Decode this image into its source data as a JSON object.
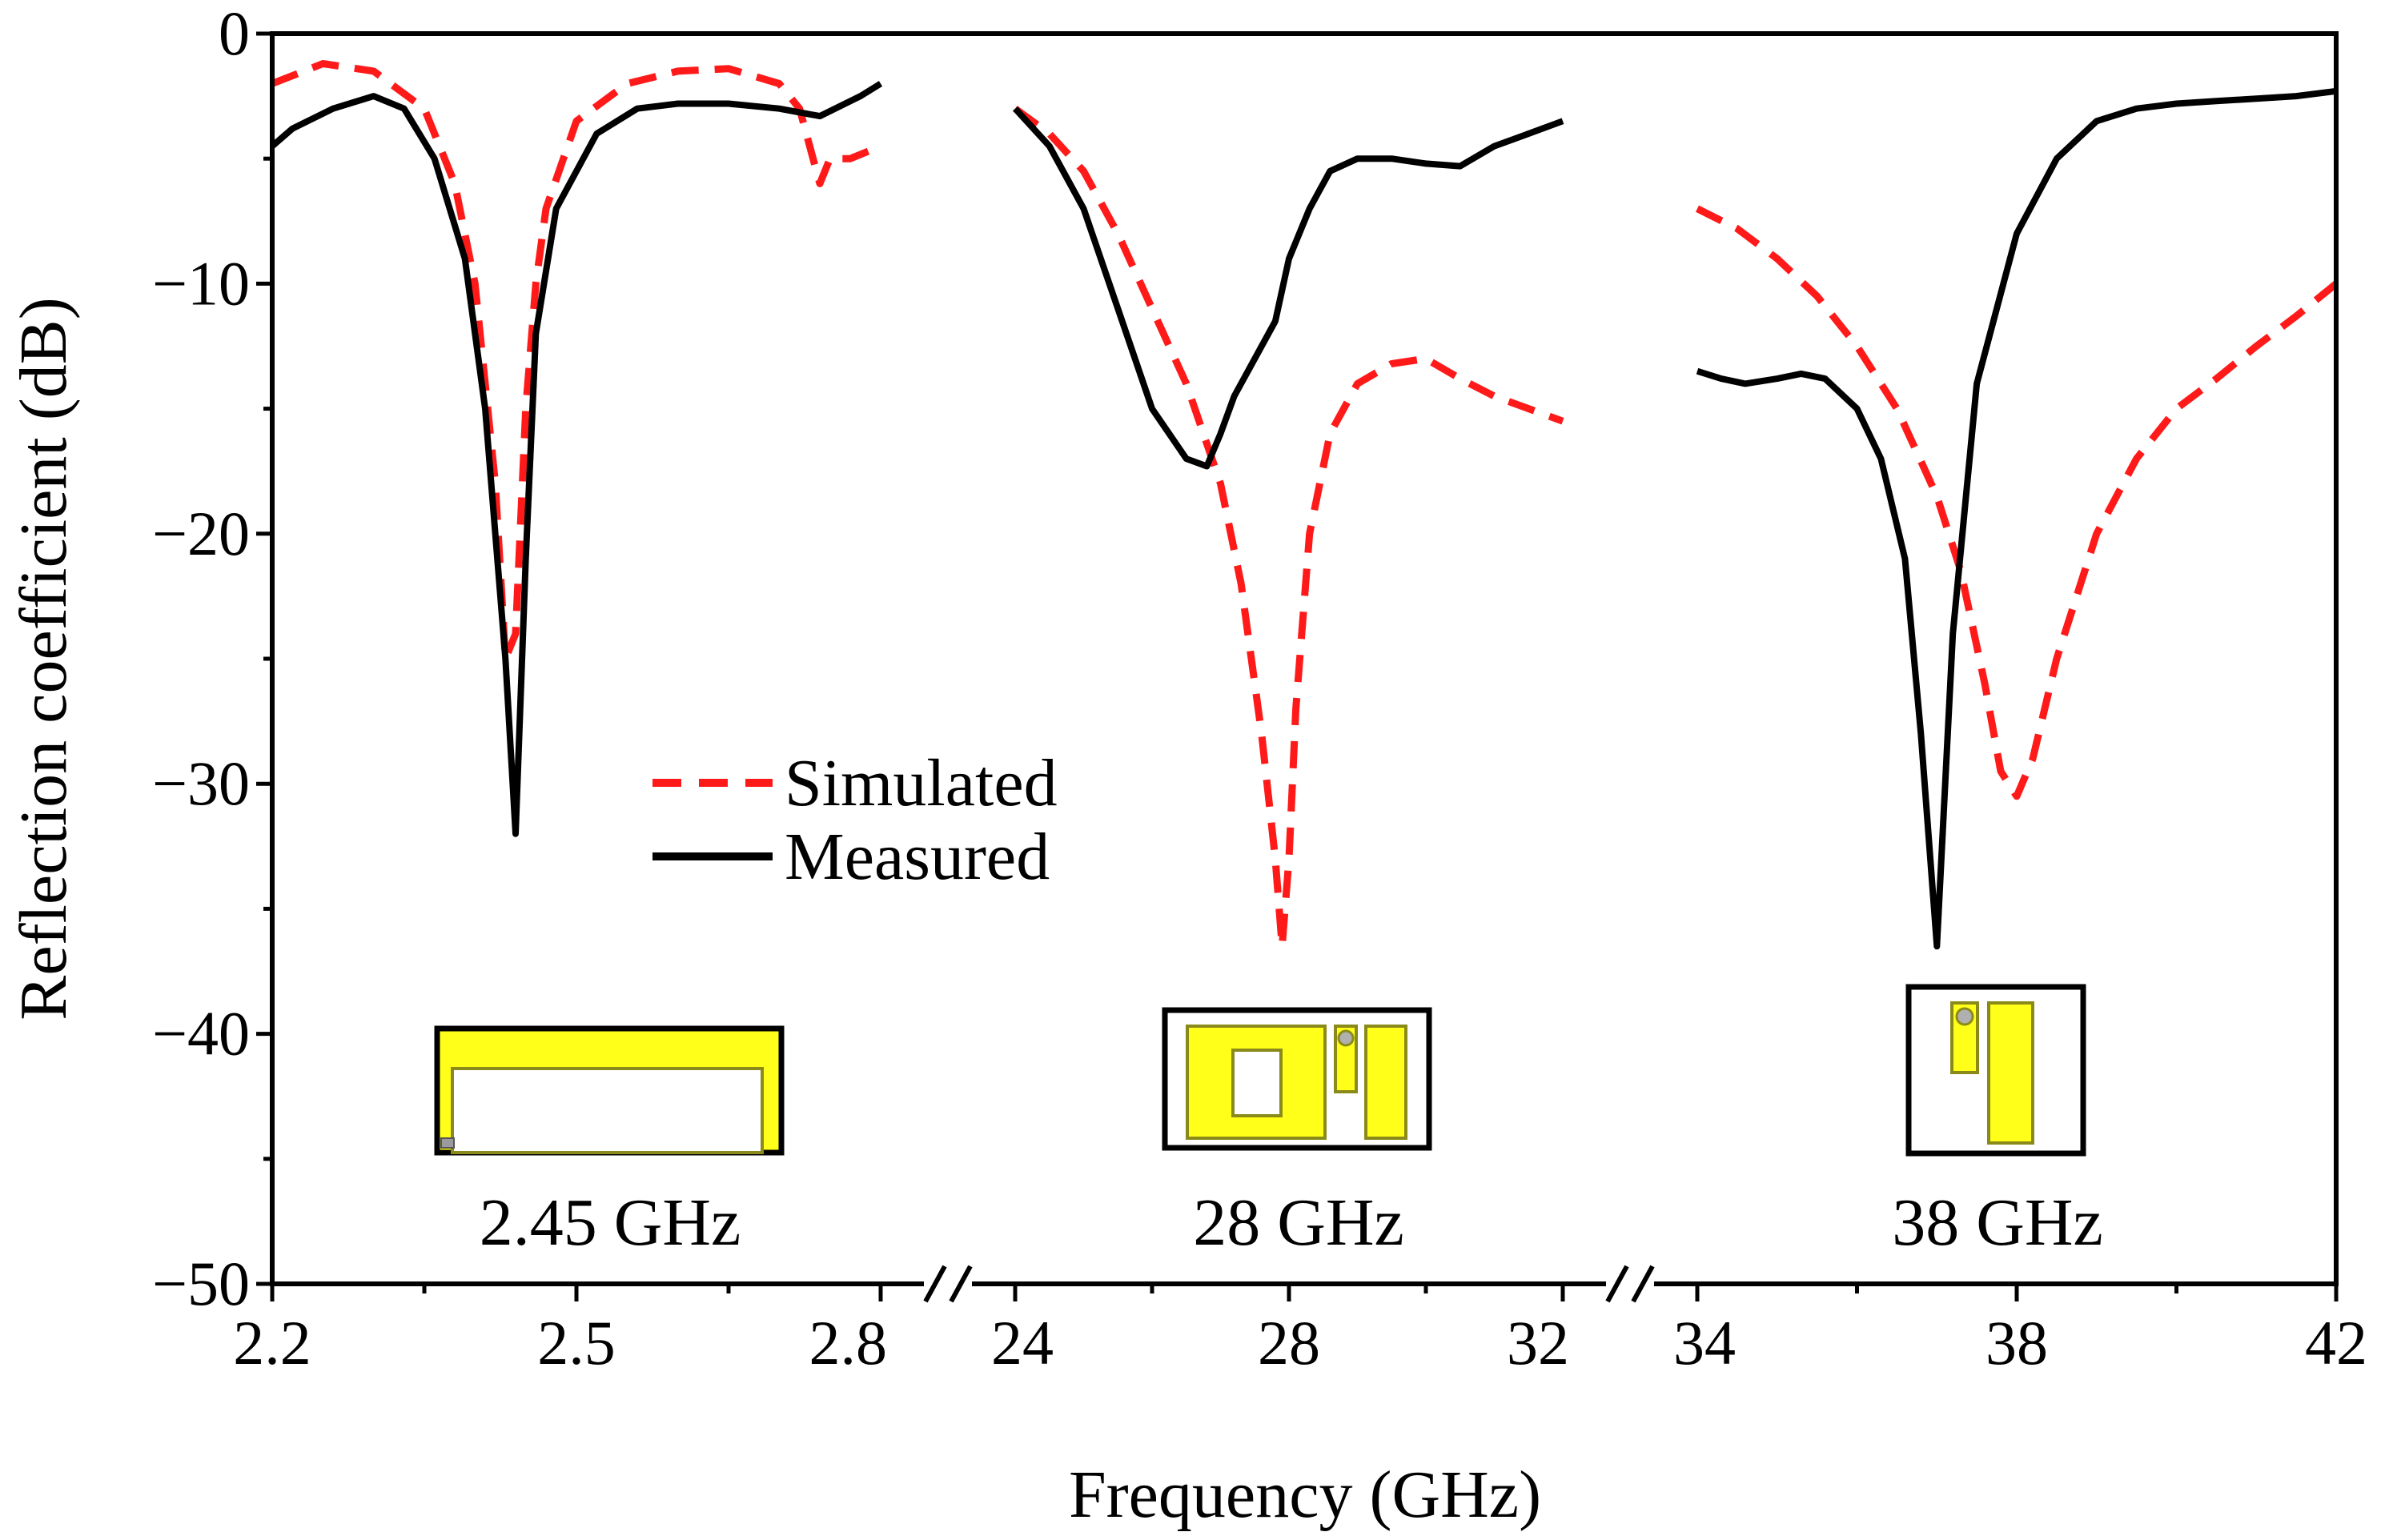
{
  "colors": {
    "simulated": "#ff1a1a",
    "measured": "#000000",
    "inset_fill": "#ffff1a",
    "inset_stroke": "#8a8a1a"
  },
  "chart_data": {
    "type": "line",
    "xlabel": "Frequency (GHz)",
    "ylabel": "Reflection coefficient (dB)",
    "ylim": [
      -50,
      0
    ],
    "yticks": [
      0,
      -10,
      -20,
      -30,
      -40,
      -50
    ],
    "ytick_labels": [
      "0",
      "−10",
      "−20",
      "−30",
      "−40",
      "−50"
    ],
    "grid": false,
    "legend_position": "center-left",
    "legend": [
      "Simulated",
      "Measured"
    ],
    "segments": [
      {
        "xlim": [
          2.2,
          2.8
        ],
        "xticks": [
          2.2,
          2.5,
          2.8
        ],
        "xtick_labels": [
          "2.2",
          "2.5",
          "2.8"
        ],
        "inset_label": "2.45 GHz",
        "series": [
          {
            "name": "Simulated",
            "style": "dashed",
            "x": [
              2.2,
              2.25,
              2.3,
              2.35,
              2.38,
              2.4,
              2.42,
              2.43,
              2.44,
              2.45,
              2.46,
              2.47,
              2.5,
              2.55,
              2.6,
              2.65,
              2.7,
              2.72,
              2.74,
              2.75,
              2.77,
              2.8
            ],
            "y": [
              -2.0,
              -1.2,
              -1.5,
              -3.0,
              -6.0,
              -10.0,
              -18.0,
              -25.0,
              -24.0,
              -15.0,
              -10.0,
              -7.0,
              -3.5,
              -2.0,
              -1.5,
              -1.4,
              -2.0,
              -3.0,
              -6.0,
              -5.0,
              -5.0,
              -4.5
            ]
          },
          {
            "name": "Measured",
            "style": "solid",
            "x": [
              2.2,
              2.22,
              2.26,
              2.3,
              2.33,
              2.36,
              2.39,
              2.41,
              2.43,
              2.44,
              2.45,
              2.46,
              2.48,
              2.52,
              2.56,
              2.6,
              2.65,
              2.7,
              2.74,
              2.78,
              2.8
            ],
            "y": [
              -4.5,
              -3.8,
              -3.0,
              -2.5,
              -3.0,
              -5.0,
              -9.0,
              -15.0,
              -25.0,
              -32.0,
              -21.0,
              -12.0,
              -7.0,
              -4.0,
              -3.0,
              -2.8,
              -2.8,
              -3.0,
              -3.3,
              -2.5,
              -2.0
            ]
          }
        ]
      },
      {
        "xlim": [
          24,
          32
        ],
        "xticks": [
          24,
          28,
          32
        ],
        "xtick_labels": [
          "24",
          "28",
          "32"
        ],
        "inset_label": "28 GHz",
        "series": [
          {
            "name": "Simulated",
            "style": "dashed",
            "x": [
              24,
              24.5,
              25,
              25.5,
              26,
              26.5,
              27,
              27.3,
              27.6,
              27.8,
              27.9,
              28.0,
              28.1,
              28.3,
              28.6,
              29,
              29.5,
              30,
              30.5,
              31,
              31.5,
              32
            ],
            "y": [
              -3.0,
              -4.0,
              -5.5,
              -8.0,
              -11.0,
              -14.0,
              -18.0,
              -22.0,
              -28.0,
              -33.0,
              -36.5,
              -33.0,
              -27.0,
              -20.0,
              -16.0,
              -14.0,
              -13.2,
              -13.0,
              -13.8,
              -14.5,
              -15.0,
              -15.5
            ]
          },
          {
            "name": "Measured",
            "style": "solid",
            "x": [
              24,
              24.5,
              25,
              25.5,
              26,
              26.5,
              26.8,
              27.0,
              27.2,
              27.5,
              27.8,
              28.0,
              28.3,
              28.6,
              29,
              29.5,
              30,
              30.5,
              31,
              31.5,
              32
            ],
            "y": [
              -3.0,
              -4.5,
              -7.0,
              -11.0,
              -15.0,
              -17.0,
              -17.3,
              -16.0,
              -14.5,
              -13.0,
              -11.5,
              -9.0,
              -7.0,
              -5.5,
              -5.0,
              -5.0,
              -5.2,
              -5.3,
              -4.5,
              -4.0,
              -3.5
            ]
          }
        ]
      },
      {
        "xlim": [
          34,
          42
        ],
        "xticks": [
          34,
          38,
          42
        ],
        "xtick_labels": [
          "34",
          "38",
          "42"
        ],
        "inset_label": "38 GHz",
        "series": [
          {
            "name": "Simulated",
            "style": "dashed",
            "x": [
              34,
              34.5,
              35,
              35.5,
              36,
              36.5,
              37,
              37.3,
              37.6,
              37.8,
              38.0,
              38.2,
              38.5,
              39,
              39.5,
              40,
              40.5,
              41,
              41.5,
              42
            ],
            "y": [
              -7.0,
              -7.8,
              -9.0,
              -10.5,
              -12.5,
              -15.0,
              -18.5,
              -21.5,
              -26.0,
              -29.5,
              -30.5,
              -29.0,
              -25.0,
              -20.0,
              -17.0,
              -15.0,
              -13.8,
              -12.5,
              -11.3,
              -10.0
            ]
          },
          {
            "name": "Measured",
            "style": "solid",
            "x": [
              34,
              34.3,
              34.6,
              35,
              35.3,
              35.6,
              36,
              36.3,
              36.6,
              36.8,
              37.0,
              37.2,
              37.5,
              38,
              38.5,
              39,
              39.5,
              40,
              40.5,
              41,
              41.5,
              42
            ],
            "y": [
              -13.5,
              -13.8,
              -14.0,
              -13.8,
              -13.6,
              -13.8,
              -15.0,
              -17.0,
              -21.0,
              -28.0,
              -36.5,
              -24.0,
              -14.0,
              -8.0,
              -5.0,
              -3.5,
              -3.0,
              -2.8,
              -2.7,
              -2.6,
              -2.5,
              -2.3
            ]
          }
        ]
      }
    ]
  }
}
